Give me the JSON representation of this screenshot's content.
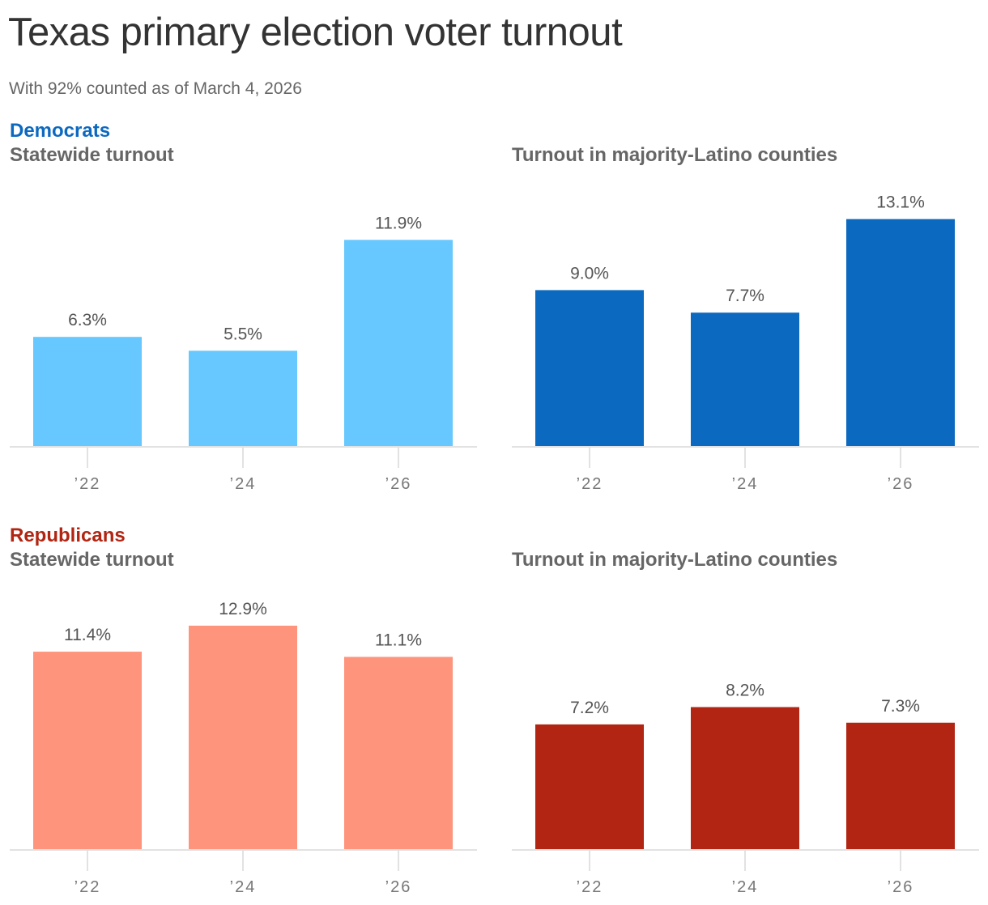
{
  "title": "Texas primary election voter turnout",
  "subtitle": "With 92% counted as of March 4, 2026",
  "sections": [
    {
      "party": "Democrats",
      "party_color": "#0c69c0"
    },
    {
      "party": "Republicans",
      "party_color": "#b12512"
    }
  ],
  "chart_data": [
    {
      "type": "bar",
      "title": "Statewide turnout",
      "categories": [
        "’22",
        "’24",
        "’26"
      ],
      "values": [
        6.3,
        5.5,
        11.9
      ],
      "labels": [
        "6.3%",
        "5.5%",
        "11.9%"
      ],
      "color": "#66c8ff",
      "ylim": [
        0,
        14
      ]
    },
    {
      "type": "bar",
      "title": "Turnout in majority-Latino counties",
      "categories": [
        "’22",
        "’24",
        "’26"
      ],
      "values": [
        9.0,
        7.7,
        13.1
      ],
      "labels": [
        "9.0%",
        "7.7%",
        "13.1%"
      ],
      "color": "#0c69c0",
      "ylim": [
        0,
        14
      ]
    },
    {
      "type": "bar",
      "title": "Statewide turnout",
      "categories": [
        "’22",
        "’24",
        "’26"
      ],
      "values": [
        11.4,
        12.9,
        11.1
      ],
      "labels": [
        "11.4%",
        "12.9%",
        "11.1%"
      ],
      "color": "#ff947c",
      "ylim": [
        0,
        14
      ]
    },
    {
      "type": "bar",
      "title": "Turnout in majority-Latino counties",
      "categories": [
        "’22",
        "’24",
        "’26"
      ],
      "values": [
        7.2,
        8.2,
        7.3
      ],
      "labels": [
        "7.2%",
        "8.2%",
        "7.3%"
      ],
      "color": "#b12512",
      "ylim": [
        0,
        14
      ]
    }
  ]
}
